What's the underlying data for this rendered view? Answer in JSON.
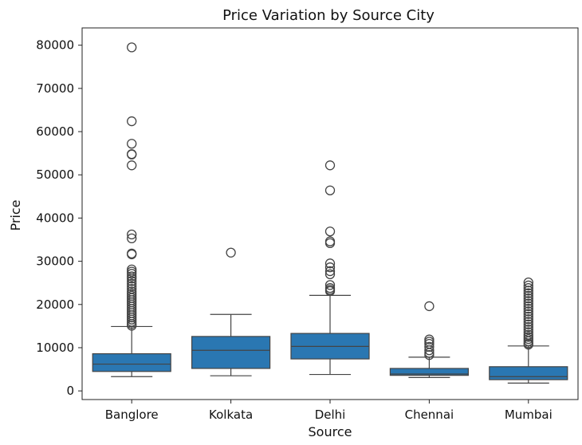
{
  "chart_data": {
    "type": "box",
    "title": "Price Variation by Source City",
    "xlabel": "Source",
    "ylabel": "Price",
    "ylim": [
      -2000,
      84000
    ],
    "yticks": [
      0,
      10000,
      20000,
      30000,
      40000,
      50000,
      60000,
      70000,
      80000
    ],
    "grid": false,
    "legend": "none",
    "colors": {
      "box_fill": "#2a77b2",
      "box_edge": "#444444"
    },
    "categories": [
      "Banglore",
      "Kolkata",
      "Delhi",
      "Chennai",
      "Mumbai"
    ],
    "boxes": [
      {
        "name": "Banglore",
        "whisker_low": 3300,
        "q1": 4500,
        "median": 6200,
        "q3": 8600,
        "whisker_high": 14900,
        "outliers": [
          79500,
          62400,
          57200,
          54800,
          54700,
          52200,
          36200,
          35300,
          31800,
          31600,
          28100,
          27600,
          27100,
          26500,
          26000,
          25400,
          24800,
          24200,
          23600,
          23000,
          22500,
          22000,
          21500,
          21000,
          20500,
          20000,
          19500,
          19000,
          18500,
          18000,
          17500,
          17000,
          16500,
          16000,
          15500,
          15100
        ]
      },
      {
        "name": "Kolkata",
        "whisker_low": 3500,
        "q1": 5200,
        "median": 9400,
        "q3": 12600,
        "whisker_high": 17700,
        "outliers": [
          32000
        ]
      },
      {
        "name": "Delhi",
        "whisker_low": 3800,
        "q1": 7400,
        "median": 10300,
        "q3": 13300,
        "whisker_high": 22100,
        "outliers": [
          52200,
          46400,
          36900,
          34600,
          34200,
          29500,
          28600,
          27700,
          27000,
          24500,
          23800,
          23400,
          23100
        ]
      },
      {
        "name": "Chennai",
        "whisker_low": 3100,
        "q1": 3600,
        "median": 3900,
        "q3": 5200,
        "whisker_high": 7800,
        "outliers": [
          19600,
          11900,
          11400,
          10900,
          10200,
          9400,
          8800,
          8300
        ]
      },
      {
        "name": "Mumbai",
        "whisker_low": 1800,
        "q1": 2600,
        "median": 3300,
        "q3": 5600,
        "whisker_high": 10400,
        "outliers": [
          25100,
          24400,
          23800,
          23200,
          22600,
          22000,
          21400,
          20800,
          20200,
          19600,
          19000,
          18400,
          17800,
          17200,
          16600,
          16000,
          15400,
          14800,
          14200,
          13600,
          13000,
          12500,
          12000,
          11500,
          11000,
          10700
        ]
      }
    ]
  }
}
